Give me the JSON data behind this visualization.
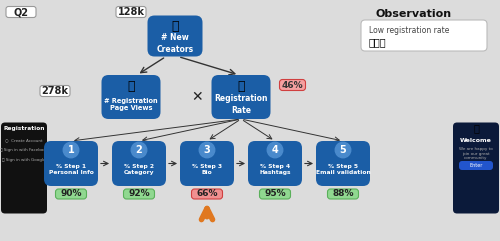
{
  "bg_color": "#dcdcdc",
  "node_color": "#1b5ea6",
  "text_color": "#ffffff",
  "green_badge_face": "#90d890",
  "green_badge_edge": "#5ab05a",
  "red_badge_face": "#f09090",
  "red_badge_edge": "#d04040",
  "orange_arrow": "#e07820",
  "q2_label": "Q2",
  "top_value": "128k",
  "left_value": "278k",
  "reg_rate_badge": "46%",
  "observation_title": "Observation",
  "observation_text": "Low registration rate",
  "observation_emoji": "🔒🔒🔒",
  "root_label": "# New\nCreators",
  "left_node_label": "# Registration\nPage Views",
  "right_node_label": "Registration\nRate",
  "steps": [
    {
      "num": "1",
      "label": "% Step 1\nPersonal Info",
      "value": "90%",
      "red": false
    },
    {
      "num": "2",
      "label": "% Step 2\nCategory",
      "value": "92%",
      "red": false
    },
    {
      "num": "3",
      "label": "% Step 3\nBio",
      "value": "66%",
      "red": true
    },
    {
      "num": "4",
      "label": "% Step 4\nHashtags",
      "value": "95%",
      "red": false
    },
    {
      "num": "5",
      "label": "% Step 5\nEmail validation",
      "value": "88%",
      "red": false
    }
  ],
  "bottleneck_step": 2,
  "xlim": [
    0,
    10
  ],
  "ylim": [
    0,
    4.82
  ]
}
